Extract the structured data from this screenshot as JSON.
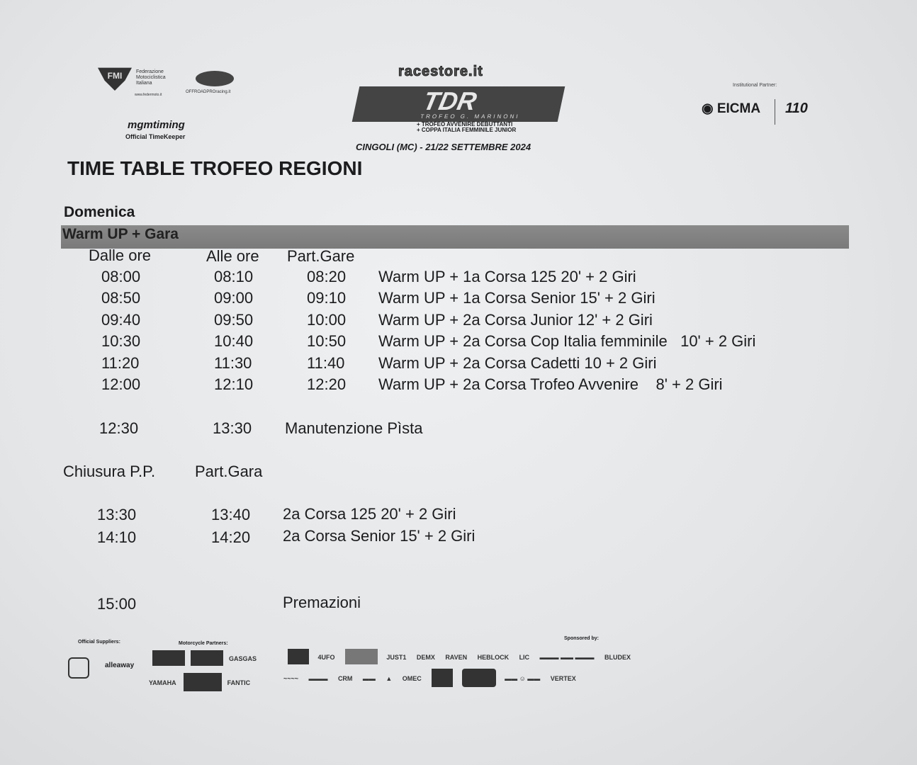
{
  "header": {
    "fmi_text": [
      "Federazione",
      "Motociclistica",
      "Italiana"
    ],
    "fmi_url": "www.federmoto.it",
    "offroad_url": "OFFROADPROracing.it",
    "timing_logo": "mgmtiming",
    "timing_caption": "Official TimeKeeper",
    "top_logo": "racestore.it",
    "tdr_logo": "TDR",
    "tdr_subtitle": "TROFEO G. MARINONI",
    "tdr_line1": "+ TROFEO AVVENIRE DEBUTTANTI",
    "tdr_line2": "+ COPPA ITALIA FEMMINILE JUNIOR",
    "event_place_date": "CINGOLI (MC) - 21/22 SETTEMBRE 2024",
    "partner_label": "Institutional Partner:",
    "eicma_logo": "EICMA"
  },
  "title": "TIME TABLE TROFEO REGIONI",
  "day": "Domenica",
  "section_band": "Warm UP + Gara",
  "table1": {
    "headers": [
      "Dalle ore",
      "Alle ore",
      "Part.Gare"
    ],
    "rows": [
      [
        "08:00",
        "08:10",
        "08:20",
        "Warm UP + 1a Corsa 125 20' + 2 Giri"
      ],
      [
        "08:50",
        "09:00",
        "09:10",
        "Warm UP + 1a Corsa Senior 15' + 2 Giri"
      ],
      [
        "09:40",
        "09:50",
        "10:00",
        "Warm UP + 2a Corsa Junior 12' + 2 Giri"
      ],
      [
        "10:30",
        "10:40",
        "10:50",
        "Warm UP + 2a Corsa Cop Italia femminile   10' + 2 Giri"
      ],
      [
        "11:20",
        "11:30",
        "11:40",
        "Warm UP + 2a Corsa Cadetti 10 + 2 Giri"
      ],
      [
        "12:00",
        "12:10",
        "12:20",
        "Warm UP + 2a Corsa Trofeo Avvenire    8' + 2 Giri"
      ]
    ]
  },
  "maintenance": [
    "12:30",
    "13:30",
    "Manutenzione Pìsta"
  ],
  "table2": {
    "headers": [
      "Chiusura P.P.",
      "Part.Gara"
    ],
    "rows": [
      [
        "13:30",
        "13:40",
        "2a Corsa 125 20' + 2 Giri"
      ],
      [
        "14:10",
        "14:20",
        "2a Corsa Senior 15' + 2 Giri"
      ]
    ]
  },
  "awards": [
    "15:00",
    "Premazioni"
  ],
  "footer": {
    "suppliers_label": "Official Suppliers:",
    "partners_label": "Motorcycle Partners:",
    "sponsored_label": "Sponsored by:",
    "partners": [
      "YAMAHA",
      "FANTIC"
    ],
    "sponsors_row1": [
      "JUST1",
      "DEMX",
      "RAVEN",
      "HEBLOCK",
      "LIC",
      "BLUDEX"
    ],
    "sponsors_row2": [
      "CRM",
      "OMEC",
      "VERTEX"
    ]
  }
}
